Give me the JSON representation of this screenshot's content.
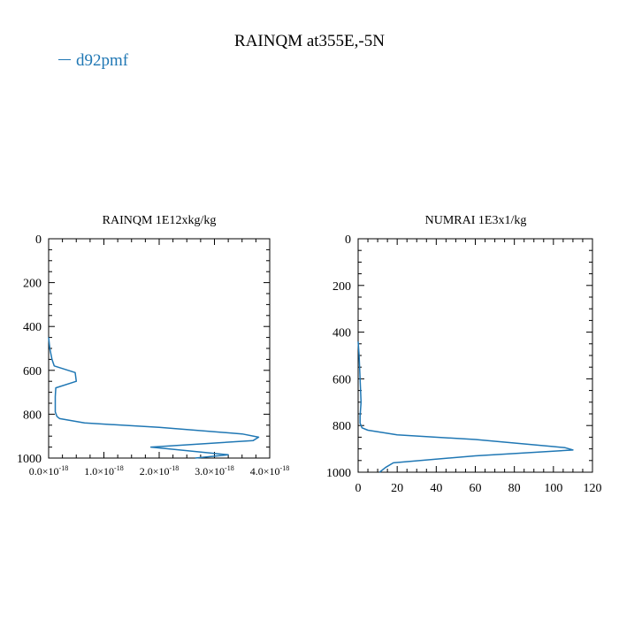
{
  "figure": {
    "title": "RAINQM at355E,-5N",
    "legend_label": "d92pmf",
    "series_color": "#1f77b4"
  },
  "chart_data": [
    {
      "type": "line",
      "title": "RAINQM  1E12xkg/kg",
      "x_ticks": [
        0,
        1e-18,
        2e-18,
        3e-18,
        4e-18
      ],
      "x_tick_mantissas": [
        "0.0",
        "1.0",
        "2.0",
        "3.0",
        "4.0"
      ],
      "x_tick_exponent": "-18",
      "xlim": [
        0,
        4e-18
      ],
      "y_ticks": [
        0,
        200,
        400,
        600,
        800,
        1000
      ],
      "ylim": [
        1000,
        0
      ],
      "series": [
        {
          "name": "d92pmf",
          "x": [
            0,
            2e-20,
            6e-20,
            1e-19,
            4.8e-19,
            5e-19,
            1.3e-19,
            1.2e-19,
            1.2e-19,
            1.5e-19,
            2e-19,
            6.5e-19,
            2e-18,
            3.5e-18,
            3.8e-18,
            3.7e-18,
            1.85e-18,
            3.25e-18,
            2.65e-18
          ],
          "y": [
            450,
            500,
            550,
            580,
            610,
            650,
            680,
            720,
            790,
            810,
            820,
            840,
            860,
            890,
            905,
            920,
            950,
            985,
            1000
          ]
        }
      ]
    },
    {
      "type": "line",
      "title": "NUMRAI  1E3x1/kg",
      "x_ticks": [
        0,
        20,
        40,
        60,
        80,
        100,
        120
      ],
      "x_tick_labels": [
        "0",
        "20",
        "40",
        "60",
        "80",
        "100",
        "120"
      ],
      "xlim": [
        0,
        120
      ],
      "y_ticks": [
        0,
        200,
        400,
        600,
        800,
        1000
      ],
      "ylim": [
        1000,
        0
      ],
      "series": [
        {
          "name": "d92pmf",
          "x": [
            0,
            0.5,
            1.0,
            1.5,
            1.0,
            1.0,
            2.0,
            5.0,
            20.0,
            60.0,
            100.0,
            106.0,
            110.0,
            60.0,
            18.0,
            14.0,
            11.0
          ],
          "y": [
            440,
            500,
            600,
            700,
            760,
            790,
            810,
            820,
            840,
            860,
            890,
            895,
            905,
            930,
            960,
            980,
            1000
          ]
        }
      ]
    }
  ]
}
